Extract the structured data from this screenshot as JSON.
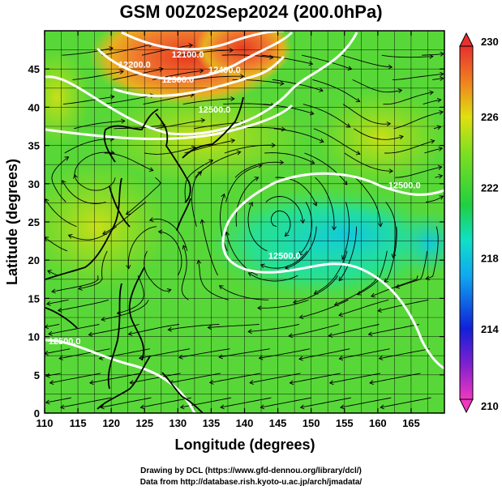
{
  "title": "GSM 00Z02Sep2024 (200.0hPa)",
  "credits": {
    "line1": "Drawing by DCL (https://www.gfd-dennou.org/library/dcl/)",
    "line2": "Data from http://database.rish.kyoto-u.ac.jp/arch/jmadata/"
  },
  "axes": {
    "xlabel": "Longitude (degrees)",
    "ylabel": "Latitude  (degrees)",
    "xlim": [
      110,
      170
    ],
    "ylim": [
      0,
      50
    ],
    "xticks": [
      110,
      115,
      120,
      125,
      130,
      135,
      140,
      145,
      150,
      155,
      160,
      165
    ],
    "yticks": [
      0,
      5,
      10,
      15,
      20,
      25,
      30,
      35,
      40,
      45
    ]
  },
  "colorbar": {
    "min": 210,
    "max": 230,
    "labels": [
      "230",
      "226",
      "222",
      "218",
      "214",
      "210"
    ]
  },
  "contour_labels": [
    {
      "text": "12100.0",
      "lon": 131.5,
      "lat": 46.5
    },
    {
      "text": "12200.0",
      "lon": 123.5,
      "lat": 45.2
    },
    {
      "text": "12300.0",
      "lon": 130.0,
      "lat": 43.2
    },
    {
      "text": "12400.0",
      "lon": 137.0,
      "lat": 44.5
    },
    {
      "text": "12500.0",
      "lon": 135.5,
      "lat": 39.3
    },
    {
      "text": "12500.0",
      "lon": 164.0,
      "lat": 29.4
    },
    {
      "text": "12500.0",
      "lon": 146.0,
      "lat": 20.2
    },
    {
      "text": "12500.0",
      "lon": 113.0,
      "lat": 9.0
    }
  ],
  "chart_data": {
    "type": "heatmap",
    "title": "GSM 00Z02Sep2024 (200.0hPa)",
    "xlabel": "Longitude (degrees)",
    "ylabel": "Latitude  (degrees)",
    "xlim": [
      110,
      170
    ],
    "ylim": [
      0,
      50
    ],
    "colorbar_range": [
      210,
      230
    ],
    "contour_levels": [
      12100,
      12200,
      12300,
      12400,
      12500
    ],
    "field_samples": [
      {
        "lon": 125,
        "lat": 47,
        "value": 229
      },
      {
        "lon": 132,
        "lat": 45,
        "value": 226
      },
      {
        "lon": 120,
        "lat": 40,
        "value": 224
      },
      {
        "lon": 115,
        "lat": 28,
        "value": 224.5
      },
      {
        "lon": 135,
        "lat": 37,
        "value": 224
      },
      {
        "lon": 160,
        "lat": 40,
        "value": 223.5
      },
      {
        "lon": 145,
        "lat": 25,
        "value": 219
      },
      {
        "lon": 160,
        "lat": 25,
        "value": 218.5
      },
      {
        "lon": 167,
        "lat": 26,
        "value": 217.5
      },
      {
        "lon": 130,
        "lat": 10,
        "value": 222
      },
      {
        "lon": 115,
        "lat": 20,
        "value": 222.5
      },
      {
        "lon": 150,
        "lat": 5,
        "value": 221.5
      }
    ]
  }
}
